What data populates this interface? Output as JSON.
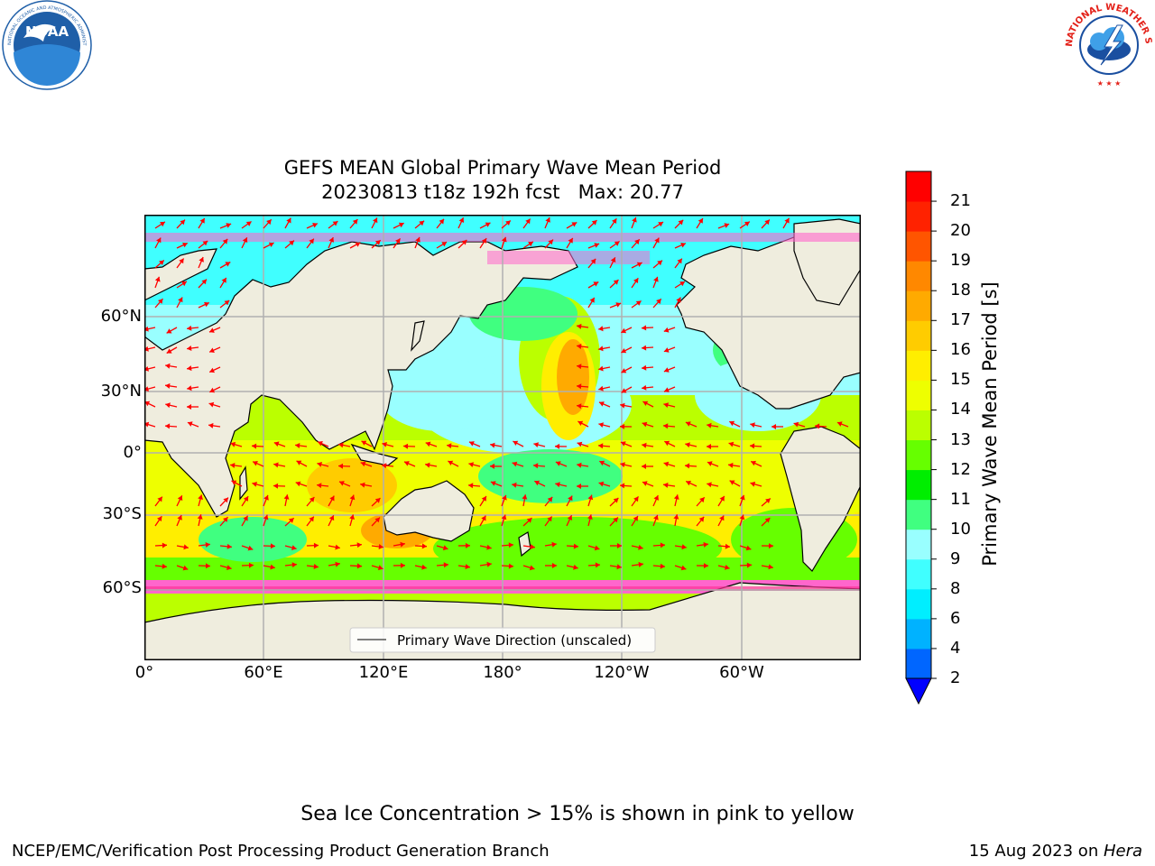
{
  "header": {
    "title_line1": "GEFS MEAN Global Primary Wave Mean Period",
    "title_line2": "20230813 t18z 192h fcst   Max: 20.77"
  },
  "logos": {
    "left": {
      "name": "NOAA",
      "ring_text": "NATIONAL OCEANIC AND ATMOSPHERIC ADMINISTRATION · U.S. DEPARTMENT OF COMMERCE",
      "color": "#1f5fa8"
    },
    "right": {
      "name": "NATIONAL WEATHER SERVICE",
      "color": "#e32119"
    }
  },
  "map": {
    "projection": "cylindrical",
    "lat_labels": [
      "60°N",
      "30°N",
      "0°",
      "30°S",
      "60°S"
    ],
    "lon_labels": [
      "0°",
      "60°E",
      "120°E",
      "180°",
      "120°W",
      "60°W"
    ],
    "legend_label": "Primary Wave Direction (unscaled)",
    "land_color": "#efedde",
    "arrow_color": "#ff0000",
    "grid": true
  },
  "colorbar": {
    "label": "Primary Wave Mean Period [s]",
    "ticks": [
      "2",
      "4",
      "6",
      "8",
      "9",
      "10",
      "11",
      "12",
      "13",
      "14",
      "15",
      "16",
      "17",
      "18",
      "19",
      "20",
      "21"
    ],
    "extend": "min",
    "colors": [
      "#0066ff",
      "#00b2ff",
      "#00eeff",
      "#40ffff",
      "#99ffff",
      "#40ff80",
      "#00ee00",
      "#66ff00",
      "#bbff00",
      "#eeff00",
      "#ffee00",
      "#ffcc00",
      "#ffaa00",
      "#ff8800",
      "#ff5500",
      "#ff2200",
      "#ff0000"
    ],
    "extend_color": "#0000ff"
  },
  "footer": {
    "note": "Sea Ice Concentration > 15% is shown in pink to yellow",
    "left": "NCEP/EMC/Verification Post Processing Product Generation Branch",
    "date": "15 Aug 2023 on ",
    "machine": "Hera"
  }
}
